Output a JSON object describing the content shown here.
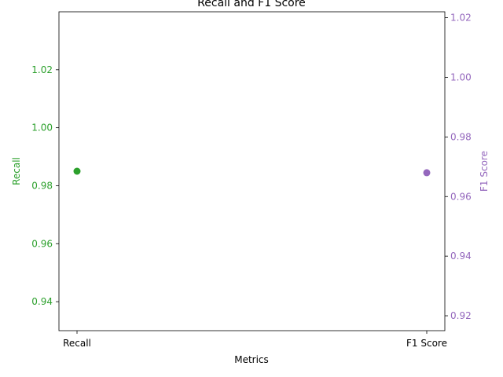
{
  "chart_data": {
    "type": "scatter",
    "title": "Recall and F1 Score",
    "xlabel": "Metrics",
    "categories": [
      "Recall",
      "F1 Score"
    ],
    "left_axis": {
      "label": "Recall",
      "color": "#2ca02c",
      "ylim": [
        0.93,
        1.04
      ],
      "ticks": [
        "0.94",
        "0.96",
        "0.98",
        "1.00",
        "1.02"
      ]
    },
    "right_axis": {
      "label": "F1 Score",
      "color": "#9467bd",
      "ylim": [
        0.915,
        1.022
      ],
      "ticks": [
        "0.92",
        "0.94",
        "0.96",
        "0.98",
        "1.00",
        "1.02"
      ]
    },
    "series": [
      {
        "name": "Recall",
        "axis": "left",
        "color": "#2ca02c",
        "points": [
          {
            "x": "Recall",
            "y": 0.985
          }
        ]
      },
      {
        "name": "F1 Score",
        "axis": "right",
        "color": "#9467bd",
        "points": [
          {
            "x": "F1 Score",
            "y": 0.968
          }
        ]
      }
    ]
  }
}
